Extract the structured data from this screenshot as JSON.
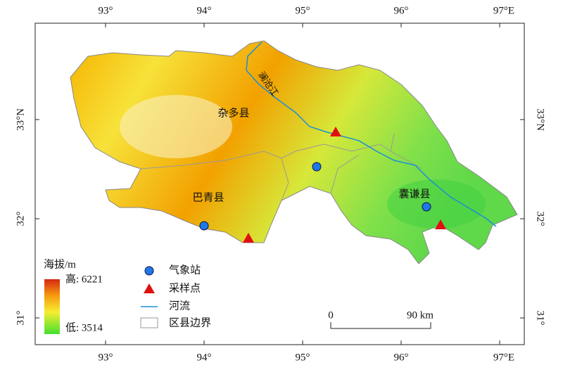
{
  "axes": {
    "top": [
      "93°",
      "94°",
      "95°",
      "96°",
      "97°E"
    ],
    "bottom": [
      "93°",
      "94°",
      "95°",
      "96°",
      "97°E"
    ],
    "left": [
      "33°N",
      "32°",
      "31°"
    ],
    "right": [
      "33°N",
      "32°",
      "31°"
    ]
  },
  "labels": {
    "zaduo": "杂多县",
    "baqing": "巴青县",
    "nangqian": "囊谦县",
    "river": "澜沧江"
  },
  "legend": {
    "title": "海拔/m",
    "high": "高: 6221",
    "low": "低: 3514",
    "items": [
      "气象站",
      "采样点",
      "河流",
      "区县边界"
    ]
  },
  "scale": {
    "start": "0",
    "end": "90 km"
  }
}
